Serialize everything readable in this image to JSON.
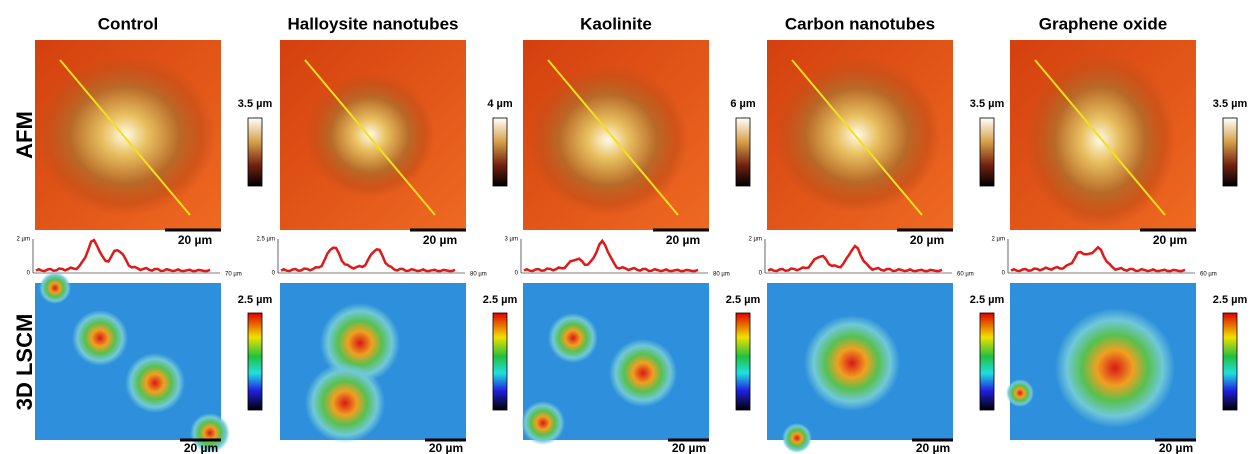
{
  "rows": [
    "AFM",
    "3D LSCM"
  ],
  "columns": [
    {
      "title": "Control",
      "afm_scale": "3.5 µm",
      "afm_scalebar": "20 µm",
      "profile": {
        "y_max": "2 µm",
        "y_min": "0",
        "x_max": "70 µm"
      },
      "lscm_scale": "2.5 µm",
      "lscm_scalebar": "20 µm"
    },
    {
      "title": "Halloysite nanotubes",
      "afm_scale": "4 µm",
      "afm_scalebar": "20 µm",
      "profile": {
        "y_max": "2.5 µm",
        "y_min": "0",
        "x_max": "80 µm"
      },
      "lscm_scale": "2.5 µm",
      "lscm_scalebar": "20 µm"
    },
    {
      "title": "Kaolinite",
      "afm_scale": "6 µm",
      "afm_scalebar": "20 µm",
      "profile": {
        "y_max": "3 µm",
        "y_min": "0",
        "x_max": "80 µm"
      },
      "lscm_scale": "2.5 µm",
      "lscm_scalebar": "20 µm"
    },
    {
      "title": "Carbon nanotubes",
      "afm_scale": "3.5 µm",
      "afm_scalebar": "20 µm",
      "profile": {
        "y_max": "2 µm",
        "y_min": "0",
        "x_max": "60 µm"
      },
      "lscm_scale": "2.5 µm",
      "lscm_scalebar": "20 µm"
    },
    {
      "title": "Graphene oxide",
      "afm_scale": "3.5 µm",
      "afm_scalebar": "20 µm",
      "profile": {
        "y_max": "2 µm",
        "y_min": "0",
        "x_max": "60 µm"
      },
      "lscm_scale": "2.5 µm",
      "lscm_scalebar": "20 µm"
    }
  ]
}
